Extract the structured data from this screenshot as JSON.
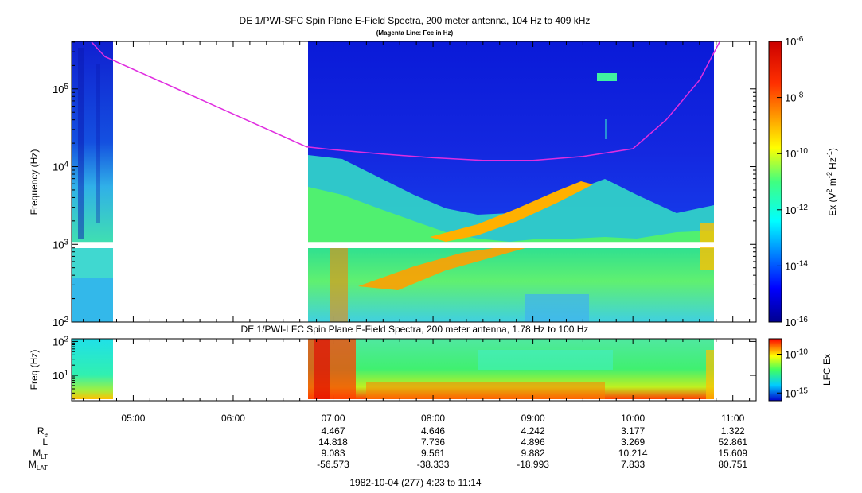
{
  "chart_data": [
    {
      "type": "heatmap",
      "title": "DE 1/PWI-SFC  Spin Plane E-Field Spectra, 200 meter antenna, 104 Hz to 409 kHz",
      "subtitle": "(Magenta Line: Fce in Hz)",
      "ylabel": "Frequency (Hz)",
      "yscale": "log",
      "ylim": [
        100,
        409000
      ],
      "y_tick_values": [
        100,
        1000,
        10000,
        100000
      ],
      "y_tick_labels": [
        "10^2",
        "10^3",
        "10^4",
        "10^5"
      ],
      "colorbar": {
        "label": "Ex (V^2 m^-2 Hz^-1)",
        "scale": "log",
        "range": [
          1e-16,
          1e-06
        ],
        "tick_values": [
          1e-16,
          1e-14,
          1e-12,
          1e-10,
          1e-08,
          1e-06
        ],
        "tick_labels": [
          "10^-16",
          "10^-14",
          "10^-12",
          "10^-10",
          "10^-8",
          "10^-6"
        ]
      },
      "data_intervals_ut": [
        [
          "04:23",
          "04:48"
        ],
        [
          "06:44",
          "10:48"
        ]
      ],
      "series": [
        {
          "name": "Fce",
          "color": "#e02de0",
          "x": [
            "04:35",
            "04:43",
            "06:44",
            "07:00",
            "07:30",
            "08:00",
            "08:30",
            "09:00",
            "09:30",
            "10:00",
            "10:20",
            "10:40",
            "10:52"
          ],
          "y": [
            400000,
            260000,
            18000,
            16500,
            14500,
            13000,
            12000,
            12000,
            13500,
            17000,
            40000,
            130000,
            400000
          ]
        }
      ]
    },
    {
      "type": "heatmap",
      "title": "DE 1/PWI-LFC  Spin Plane E-Field Spectra, 200 meter antenna, 1.78 Hz to 100 Hz",
      "ylabel": "Freq (Hz)",
      "yscale": "log",
      "ylim": [
        1.78,
        120
      ],
      "y_tick_values": [
        10,
        100
      ],
      "y_tick_labels": [
        "10^1",
        "10^2"
      ],
      "colorbar": {
        "label": "LFC Ex",
        "scale": "log",
        "range": [
          1e-16,
          1e-08
        ],
        "tick_values": [
          1e-15,
          1e-10
        ],
        "tick_labels": [
          "10^-15",
          "10^-10"
        ]
      },
      "data_intervals_ut": [
        [
          "04:23",
          "04:48"
        ],
        [
          "06:44",
          "10:48"
        ]
      ]
    }
  ],
  "x_axis": {
    "range": [
      "04:23",
      "11:14"
    ],
    "tick_labels": [
      "05:00",
      "06:00",
      "07:00",
      "08:00",
      "09:00",
      "10:00",
      "11:00"
    ],
    "minor_tick_minutes": 10
  },
  "ephemeris": {
    "rows": [
      {
        "label": "R",
        "sub": "e",
        "values": [
          "4.467",
          "4.646",
          "4.242",
          "3.177",
          "1.322"
        ]
      },
      {
        "label": "L",
        "sub": "",
        "values": [
          "14.818",
          "7.736",
          "4.896",
          "3.269",
          "52.861"
        ]
      },
      {
        "label": "M",
        "sub": "LT",
        "values": [
          "9.083",
          "9.561",
          "9.882",
          "10.214",
          "15.609"
        ]
      },
      {
        "label": "M",
        "sub": "LAT",
        "values": [
          "-56.573",
          "-38.333",
          "-18.993",
          "7.833",
          "80.751"
        ]
      }
    ],
    "columns_at": [
      "07:00",
      "08:00",
      "09:00",
      "10:00",
      "11:00"
    ]
  },
  "footer": "1982-10-04 (277) 4:23 to 11:14"
}
